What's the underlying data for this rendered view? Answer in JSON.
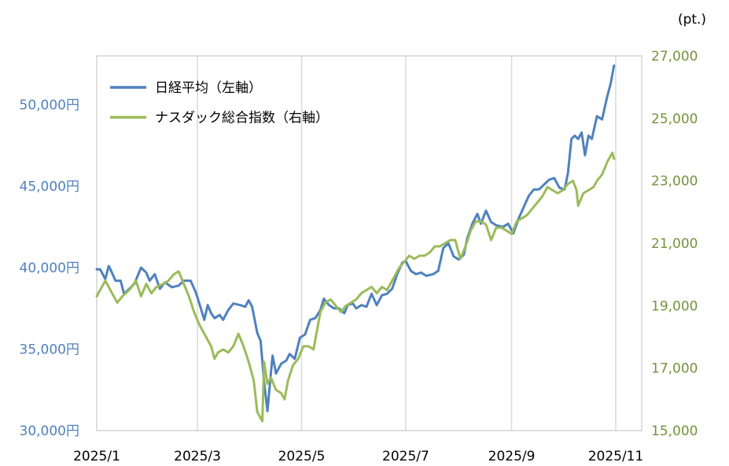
{
  "chart_data": {
    "type": "line",
    "unit_right": "(pt.)",
    "x_ticks": [
      "2025/1",
      "2025/3",
      "2025/5",
      "2025/7",
      "2025/9",
      "2025/11"
    ],
    "x_tick_positions": [
      "2025-01-01",
      "2025-03-01",
      "2025-05-01",
      "2025-07-01",
      "2025-09-01",
      "2025-11-01"
    ],
    "x_range": [
      "2025-01-01",
      "2025-11-01"
    ],
    "y_left": {
      "min": 30000,
      "max": 53000,
      "ticks": [
        {
          "v": 30000,
          "label": "30,000円"
        },
        {
          "v": 35000,
          "label": "35,000円"
        },
        {
          "v": 40000,
          "label": "40,000円"
        },
        {
          "v": 45000,
          "label": "45,000円"
        },
        {
          "v": 50000,
          "label": "50,000円"
        }
      ]
    },
    "y_right": {
      "min": 15000,
      "max": 27000,
      "ticks": [
        {
          "v": 15000,
          "label": "15,000"
        },
        {
          "v": 17000,
          "label": "17,000"
        },
        {
          "v": 19000,
          "label": "19,000"
        },
        {
          "v": 21000,
          "label": "21,000"
        },
        {
          "v": 23000,
          "label": "23,000"
        },
        {
          "v": 25000,
          "label": "25,000"
        },
        {
          "v": 27000,
          "label": "27,000"
        }
      ]
    },
    "grid": "vertical",
    "legend_position": "top-left",
    "series": [
      {
        "name": "日経平均（左軸）",
        "axis": "left",
        "color": "#4f81bd",
        "points": [
          [
            "2025-01-01",
            39900
          ],
          [
            "2025-01-03",
            39900
          ],
          [
            "2025-01-06",
            39300
          ],
          [
            "2025-01-08",
            40100
          ],
          [
            "2025-01-09",
            39900
          ],
          [
            "2025-01-12",
            39200
          ],
          [
            "2025-01-15",
            39200
          ],
          [
            "2025-01-17",
            38400
          ],
          [
            "2025-01-20",
            38700
          ],
          [
            "2025-01-23",
            39000
          ],
          [
            "2025-01-27",
            40000
          ],
          [
            "2025-01-30",
            39700
          ],
          [
            "2025-02-01",
            39200
          ],
          [
            "2025-02-04",
            39600
          ],
          [
            "2025-02-07",
            38700
          ],
          [
            "2025-02-10",
            39100
          ],
          [
            "2025-02-14",
            38800
          ],
          [
            "2025-02-18",
            38900
          ],
          [
            "2025-02-21",
            39200
          ],
          [
            "2025-02-25",
            39200
          ],
          [
            "2025-02-28",
            38500
          ],
          [
            "2025-03-03",
            37500
          ],
          [
            "2025-03-05",
            36800
          ],
          [
            "2025-03-07",
            37700
          ],
          [
            "2025-03-09",
            37200
          ],
          [
            "2025-03-11",
            36900
          ],
          [
            "2025-03-14",
            37100
          ],
          [
            "2025-03-16",
            36800
          ],
          [
            "2025-03-19",
            37400
          ],
          [
            "2025-03-22",
            37800
          ],
          [
            "2025-03-26",
            37700
          ],
          [
            "2025-03-29",
            37600
          ],
          [
            "2025-03-31",
            38000
          ],
          [
            "2025-04-02",
            37600
          ],
          [
            "2025-04-05",
            36000
          ],
          [
            "2025-04-07",
            35500
          ],
          [
            "2025-04-09",
            33000
          ],
          [
            "2025-04-11",
            31200
          ],
          [
            "2025-04-13",
            33500
          ],
          [
            "2025-04-14",
            34600
          ],
          [
            "2025-04-16",
            33500
          ],
          [
            "2025-04-19",
            34100
          ],
          [
            "2025-04-22",
            34300
          ],
          [
            "2025-04-24",
            34700
          ],
          [
            "2025-04-27",
            34400
          ],
          [
            "2025-04-30",
            35700
          ],
          [
            "2025-05-03",
            35900
          ],
          [
            "2025-05-06",
            36800
          ],
          [
            "2025-05-09",
            36900
          ],
          [
            "2025-05-12",
            37400
          ],
          [
            "2025-05-14",
            38100
          ],
          [
            "2025-05-17",
            37700
          ],
          [
            "2025-05-20",
            37500
          ],
          [
            "2025-05-23",
            37500
          ],
          [
            "2025-05-26",
            37200
          ],
          [
            "2025-05-28",
            37700
          ],
          [
            "2025-05-31",
            37800
          ],
          [
            "2025-06-02",
            37500
          ],
          [
            "2025-06-05",
            37700
          ],
          [
            "2025-06-08",
            37600
          ],
          [
            "2025-06-11",
            38400
          ],
          [
            "2025-06-14",
            37700
          ],
          [
            "2025-06-17",
            38300
          ],
          [
            "2025-06-20",
            38400
          ],
          [
            "2025-06-23",
            38700
          ],
          [
            "2025-06-26",
            39600
          ],
          [
            "2025-06-29",
            40300
          ],
          [
            "2025-07-01",
            40400
          ],
          [
            "2025-07-04",
            39800
          ],
          [
            "2025-07-07",
            39600
          ],
          [
            "2025-07-10",
            39700
          ],
          [
            "2025-07-13",
            39500
          ],
          [
            "2025-07-17",
            39600
          ],
          [
            "2025-07-20",
            39800
          ],
          [
            "2025-07-23",
            41200
          ],
          [
            "2025-07-26",
            41500
          ],
          [
            "2025-07-29",
            40700
          ],
          [
            "2025-08-01",
            40500
          ],
          [
            "2025-08-04",
            40800
          ],
          [
            "2025-08-06",
            41800
          ],
          [
            "2025-08-09",
            42700
          ],
          [
            "2025-08-12",
            43300
          ],
          [
            "2025-08-14",
            42700
          ],
          [
            "2025-08-17",
            43500
          ],
          [
            "2025-08-20",
            42800
          ],
          [
            "2025-08-23",
            42600
          ],
          [
            "2025-08-27",
            42500
          ],
          [
            "2025-08-30",
            42700
          ],
          [
            "2025-09-02",
            42100
          ],
          [
            "2025-09-05",
            43000
          ],
          [
            "2025-09-08",
            43700
          ],
          [
            "2025-09-11",
            44400
          ],
          [
            "2025-09-14",
            44800
          ],
          [
            "2025-09-17",
            44800
          ],
          [
            "2025-09-20",
            45100
          ],
          [
            "2025-09-23",
            45400
          ],
          [
            "2025-09-26",
            45500
          ],
          [
            "2025-09-29",
            44900
          ],
          [
            "2025-10-02",
            44800
          ],
          [
            "2025-10-04",
            45800
          ],
          [
            "2025-10-06",
            47900
          ],
          [
            "2025-10-08",
            48100
          ],
          [
            "2025-10-10",
            47900
          ],
          [
            "2025-10-12",
            48300
          ],
          [
            "2025-10-14",
            46900
          ],
          [
            "2025-10-16",
            48100
          ],
          [
            "2025-10-18",
            47900
          ],
          [
            "2025-10-21",
            49300
          ],
          [
            "2025-10-24",
            49100
          ],
          [
            "2025-10-27",
            50500
          ],
          [
            "2025-10-29",
            51300
          ],
          [
            "2025-10-31",
            52400
          ]
        ]
      },
      {
        "name": "ナスダック総合指数（右軸）",
        "axis": "right",
        "color": "#9bbb59",
        "points": [
          [
            "2025-01-01",
            19300
          ],
          [
            "2025-01-03",
            19500
          ],
          [
            "2025-01-06",
            19800
          ],
          [
            "2025-01-08",
            19600
          ],
          [
            "2025-01-10",
            19400
          ],
          [
            "2025-01-13",
            19100
          ],
          [
            "2025-01-16",
            19300
          ],
          [
            "2025-01-20",
            19500
          ],
          [
            "2025-01-24",
            19800
          ],
          [
            "2025-01-27",
            19300
          ],
          [
            "2025-01-30",
            19700
          ],
          [
            "2025-02-02",
            19400
          ],
          [
            "2025-02-05",
            19600
          ],
          [
            "2025-02-09",
            19700
          ],
          [
            "2025-02-12",
            19800
          ],
          [
            "2025-02-15",
            20000
          ],
          [
            "2025-02-18",
            20100
          ],
          [
            "2025-02-21",
            19700
          ],
          [
            "2025-02-24",
            19300
          ],
          [
            "2025-02-27",
            18800
          ],
          [
            "2025-03-02",
            18400
          ],
          [
            "2025-03-05",
            18100
          ],
          [
            "2025-03-09",
            17700
          ],
          [
            "2025-03-11",
            17300
          ],
          [
            "2025-03-13",
            17500
          ],
          [
            "2025-03-16",
            17600
          ],
          [
            "2025-03-19",
            17500
          ],
          [
            "2025-03-22",
            17700
          ],
          [
            "2025-03-25",
            18100
          ],
          [
            "2025-03-28",
            17700
          ],
          [
            "2025-03-31",
            17200
          ],
          [
            "2025-04-03",
            16600
          ],
          [
            "2025-04-05",
            15600
          ],
          [
            "2025-04-07",
            15400
          ],
          [
            "2025-04-08",
            15300
          ],
          [
            "2025-04-09",
            17200
          ],
          [
            "2025-04-11",
            16500
          ],
          [
            "2025-04-13",
            16700
          ],
          [
            "2025-04-16",
            16300
          ],
          [
            "2025-04-19",
            16200
          ],
          [
            "2025-04-21",
            16000
          ],
          [
            "2025-04-23",
            16600
          ],
          [
            "2025-04-26",
            17100
          ],
          [
            "2025-04-29",
            17300
          ],
          [
            "2025-05-02",
            17700
          ],
          [
            "2025-05-05",
            17700
          ],
          [
            "2025-05-08",
            17600
          ],
          [
            "2025-05-12",
            18800
          ],
          [
            "2025-05-15",
            19100
          ],
          [
            "2025-05-18",
            19200
          ],
          [
            "2025-05-21",
            19000
          ],
          [
            "2025-05-24",
            18800
          ],
          [
            "2025-05-27",
            19000
          ],
          [
            "2025-05-30",
            19100
          ],
          [
            "2025-06-02",
            19200
          ],
          [
            "2025-06-05",
            19400
          ],
          [
            "2025-06-08",
            19500
          ],
          [
            "2025-06-11",
            19600
          ],
          [
            "2025-06-14",
            19400
          ],
          [
            "2025-06-17",
            19600
          ],
          [
            "2025-06-20",
            19500
          ],
          [
            "2025-06-24",
            19900
          ],
          [
            "2025-06-27",
            20200
          ],
          [
            "2025-06-30",
            20400
          ],
          [
            "2025-07-03",
            20600
          ],
          [
            "2025-07-06",
            20500
          ],
          [
            "2025-07-09",
            20600
          ],
          [
            "2025-07-12",
            20600
          ],
          [
            "2025-07-15",
            20700
          ],
          [
            "2025-07-18",
            20900
          ],
          [
            "2025-07-21",
            20900
          ],
          [
            "2025-07-24",
            21000
          ],
          [
            "2025-07-27",
            21100
          ],
          [
            "2025-07-30",
            21100
          ],
          [
            "2025-08-02",
            20500
          ],
          [
            "2025-08-05",
            20900
          ],
          [
            "2025-08-08",
            21400
          ],
          [
            "2025-08-11",
            21700
          ],
          [
            "2025-08-14",
            21700
          ],
          [
            "2025-08-17",
            21600
          ],
          [
            "2025-08-20",
            21100
          ],
          [
            "2025-08-23",
            21500
          ],
          [
            "2025-08-26",
            21500
          ],
          [
            "2025-08-29",
            21400
          ],
          [
            "2025-09-01",
            21300
          ],
          [
            "2025-09-04",
            21700
          ],
          [
            "2025-09-07",
            21800
          ],
          [
            "2025-09-10",
            21900
          ],
          [
            "2025-09-13",
            22100
          ],
          [
            "2025-09-16",
            22300
          ],
          [
            "2025-09-19",
            22500
          ],
          [
            "2025-09-22",
            22800
          ],
          [
            "2025-09-25",
            22700
          ],
          [
            "2025-09-28",
            22600
          ],
          [
            "2025-10-01",
            22700
          ],
          [
            "2025-10-04",
            22900
          ],
          [
            "2025-10-07",
            23000
          ],
          [
            "2025-10-09",
            22700
          ],
          [
            "2025-10-10",
            22200
          ],
          [
            "2025-10-13",
            22600
          ],
          [
            "2025-10-16",
            22700
          ],
          [
            "2025-10-19",
            22800
          ],
          [
            "2025-10-21",
            23000
          ],
          [
            "2025-10-24",
            23200
          ],
          [
            "2025-10-27",
            23600
          ],
          [
            "2025-10-30",
            23900
          ],
          [
            "2025-10-31",
            23700
          ]
        ]
      }
    ]
  }
}
